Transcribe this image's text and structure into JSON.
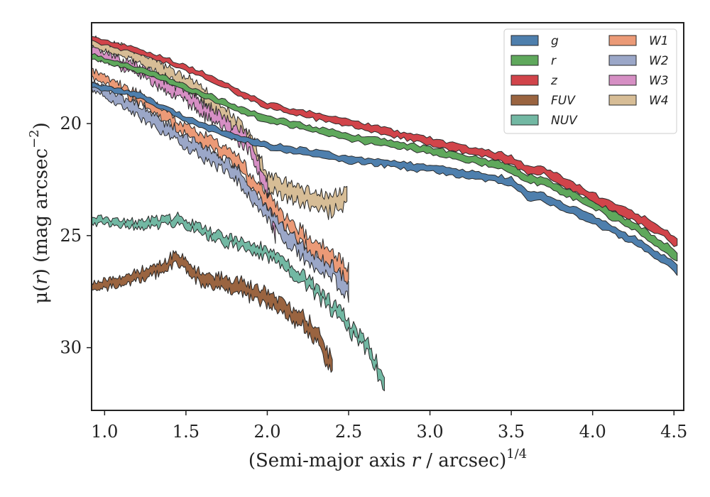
{
  "chart_data": {
    "type": "area",
    "xlabel_main": "(Semi-major axis ",
    "xlabel_var": "r",
    "xlabel_rest": " / arcsec)",
    "xlabel_sup": "1/4",
    "ylabel_main": "μ(",
    "ylabel_var": "r",
    "ylabel_rest": ") (mag arcsec",
    "ylabel_sup": "−2",
    "ylabel_end": ")",
    "xlim": [
      0.92,
      4.56
    ],
    "ylim": [
      32.8,
      15.5
    ],
    "y_inverted": true,
    "xticks": [
      "1.0",
      "1.5",
      "2.0",
      "2.5",
      "3.0",
      "3.5",
      "4.0",
      "4.5"
    ],
    "yticks": [
      "20",
      "25",
      "30"
    ],
    "grid": false,
    "legend_position": "top-right",
    "legend_columns": 2,
    "series": [
      {
        "name": "g",
        "color": "#4e7fad",
        "x": [
          0.92,
          1.2,
          1.5,
          1.8,
          2.0,
          2.5,
          3.0,
          3.5,
          3.6,
          3.7,
          4.0,
          4.3,
          4.52
        ],
        "y": [
          18.3,
          18.7,
          19.8,
          20.6,
          21.0,
          21.6,
          22.0,
          22.6,
          23.2,
          23.3,
          24.3,
          25.4,
          26.5
        ],
        "width": 0.3
      },
      {
        "name": "r",
        "color": "#5fa85c",
        "x": [
          0.92,
          1.3,
          1.6,
          2.0,
          2.5,
          3.0,
          3.5,
          3.6,
          3.7,
          4.0,
          4.3,
          4.52
        ],
        "y": [
          17.0,
          17.8,
          18.7,
          19.8,
          20.6,
          21.2,
          22.0,
          22.5,
          22.6,
          23.6,
          24.8,
          25.9
        ],
        "width": 0.3
      },
      {
        "name": "z",
        "color": "#d1444a",
        "x": [
          0.92,
          1.3,
          1.6,
          2.0,
          2.5,
          3.0,
          3.5,
          3.6,
          3.7,
          4.0,
          4.3,
          4.52
        ],
        "y": [
          16.2,
          17.0,
          17.8,
          19.2,
          20.0,
          20.8,
          21.6,
          22.1,
          22.1,
          23.3,
          24.3,
          25.3
        ],
        "width": 0.3
      },
      {
        "name": "FUV",
        "color": "#9a6440",
        "x": [
          0.92,
          1.1,
          1.3,
          1.45,
          1.6,
          1.8,
          2.0,
          2.1,
          2.2,
          2.3,
          2.4
        ],
        "y": [
          27.3,
          27.0,
          26.6,
          26.0,
          27.0,
          27.2,
          27.8,
          28.3,
          28.6,
          29.5,
          30.8
        ],
        "width": 0.5
      },
      {
        "name": "NUV",
        "color": "#72b8a3",
        "x": [
          0.92,
          1.2,
          1.45,
          1.6,
          1.8,
          2.0,
          2.2,
          2.4,
          2.6,
          2.72
        ],
        "y": [
          24.3,
          24.5,
          24.3,
          24.8,
          25.3,
          25.8,
          26.8,
          28.2,
          29.8,
          31.5
        ],
        "width": 0.4
      },
      {
        "name": "W1",
        "color": "#eb9a77",
        "x": [
          0.92,
          1.2,
          1.5,
          1.8,
          2.0,
          2.2,
          2.4,
          2.5
        ],
        "y": [
          17.8,
          18.8,
          20.3,
          21.5,
          23.5,
          25.0,
          26.0,
          26.8
        ],
        "width": 0.5
      },
      {
        "name": "W2",
        "color": "#9ba7c8",
        "x": [
          0.92,
          1.2,
          1.5,
          1.8,
          2.0,
          2.2,
          2.4,
          2.5
        ],
        "y": [
          18.3,
          19.4,
          20.8,
          22.1,
          24.0,
          25.6,
          26.5,
          27.4
        ],
        "width": 0.6
      },
      {
        "name": "W3",
        "color": "#d68fc4",
        "x": [
          0.92,
          1.2,
          1.5,
          1.7,
          1.9,
          2.0,
          2.05
        ],
        "y": [
          16.8,
          17.6,
          18.8,
          19.8,
          21.0,
          23.0,
          25.0
        ],
        "width": 0.5
      },
      {
        "name": "W4",
        "color": "#d7bd96",
        "x": [
          0.92,
          1.2,
          1.5,
          1.7,
          1.9,
          2.0,
          2.2,
          2.35,
          2.49
        ],
        "y": [
          16.4,
          17.0,
          18.2,
          19.3,
          20.8,
          22.6,
          23.2,
          23.6,
          23.4
        ],
        "width": 0.6
      }
    ]
  }
}
